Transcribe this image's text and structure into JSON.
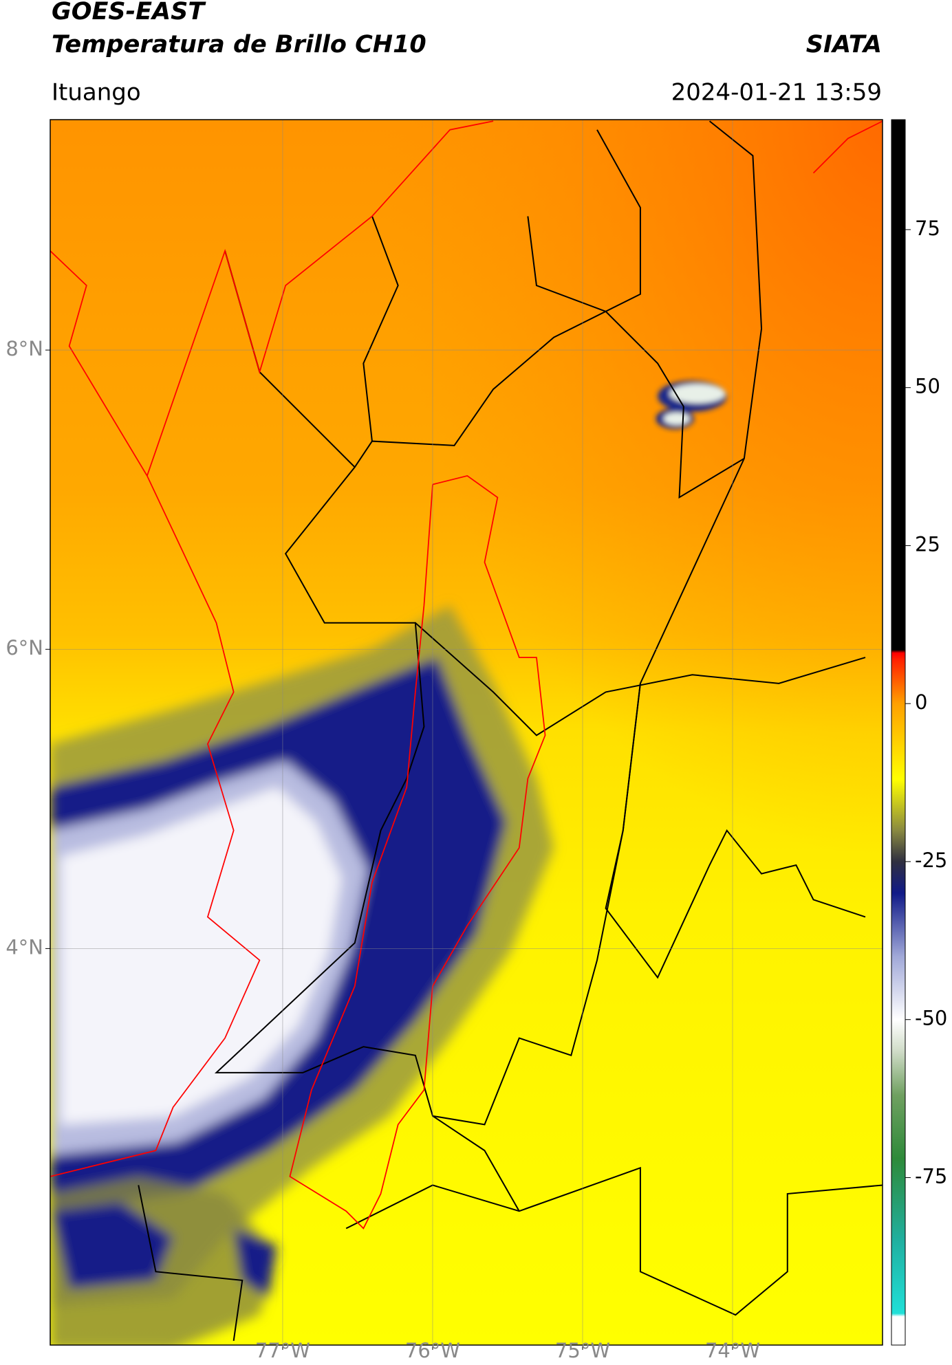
{
  "title": "GOES-EAST",
  "subtitle": "Temperatura de Brillo CH10",
  "brand": "SIATA",
  "location": "Ituango",
  "timestamp": "2024-01-21 13:59",
  "map": {
    "xlim": [
      -78.55,
      -73.0
    ],
    "ylim": [
      1.35,
      9.54
    ],
    "xticks": [
      {
        "value": -77,
        "label": "77°W"
      },
      {
        "value": -76,
        "label": "76°W"
      },
      {
        "value": -75,
        "label": "75°W"
      },
      {
        "value": -74,
        "label": "74°W"
      }
    ],
    "yticks": [
      {
        "value": 8,
        "label": "8°N"
      },
      {
        "value": 6,
        "label": "6°N"
      },
      {
        "value": 4,
        "label": "4°N"
      }
    ],
    "grid": true
  },
  "colorbar": {
    "clim": [
      -101.5,
      92.4
    ],
    "ticks": [
      75,
      50,
      25,
      0,
      -25,
      -50,
      -75
    ],
    "colormap": [
      {
        "value": -101.5,
        "color": "#ffffff"
      },
      {
        "value": -97,
        "color": "#ffffff"
      },
      {
        "value": -96.5,
        "color": "#20e0d8"
      },
      {
        "value": -85,
        "color": "#20b0a0"
      },
      {
        "value": -72,
        "color": "#2e8a3a"
      },
      {
        "value": -62,
        "color": "#6fa060"
      },
      {
        "value": -55,
        "color": "#d0dcc8"
      },
      {
        "value": -50,
        "color": "#ffffff"
      },
      {
        "value": -40,
        "color": "#a0a8d8"
      },
      {
        "value": -30,
        "color": "#101a88"
      },
      {
        "value": -25,
        "color": "#303040"
      },
      {
        "value": -20,
        "color": "#8a8a40"
      },
      {
        "value": -12,
        "color": "#ffff00"
      },
      {
        "value": 0,
        "color": "#ffa000"
      },
      {
        "value": 7,
        "color": "#ff2000"
      },
      {
        "value": 8,
        "color": "#ff0000"
      },
      {
        "value": 8.5,
        "color": "#000000"
      },
      {
        "value": 92.4,
        "color": "#000000"
      }
    ]
  }
}
